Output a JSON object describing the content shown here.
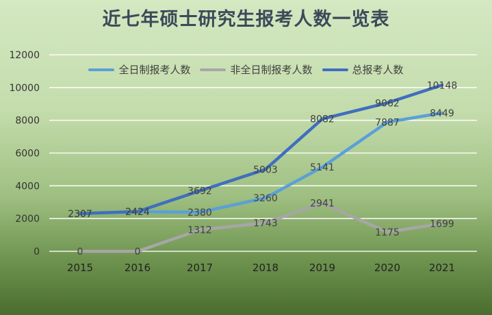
{
  "chart_data": {
    "type": "line",
    "title": "近七年硕士研究生报考人数一览表",
    "categories": [
      "2015",
      "2016",
      "2017",
      "2018",
      "2019",
      "2020",
      "2021"
    ],
    "series": [
      {
        "name": "全日制报考人数",
        "color": "#5aa0d8",
        "values": [
          2307,
          2424,
          2380,
          3260,
          5141,
          7887,
          8449
        ]
      },
      {
        "name": "非全日制报考人数",
        "color": "#a6a6a6",
        "values": [
          0,
          0,
          1312,
          1743,
          2941,
          1175,
          1699
        ]
      },
      {
        "name": "总报考人数",
        "color": "#3f6fbf",
        "values": [
          2307,
          2424,
          3692,
          5003,
          8082,
          9062,
          10148
        ]
      }
    ],
    "ylim": [
      0,
      12000
    ],
    "yticks": [
      "0",
      "2000",
      "4000",
      "6000",
      "8000",
      "10000",
      "12000"
    ],
    "grid": true,
    "legend_position": "top"
  }
}
